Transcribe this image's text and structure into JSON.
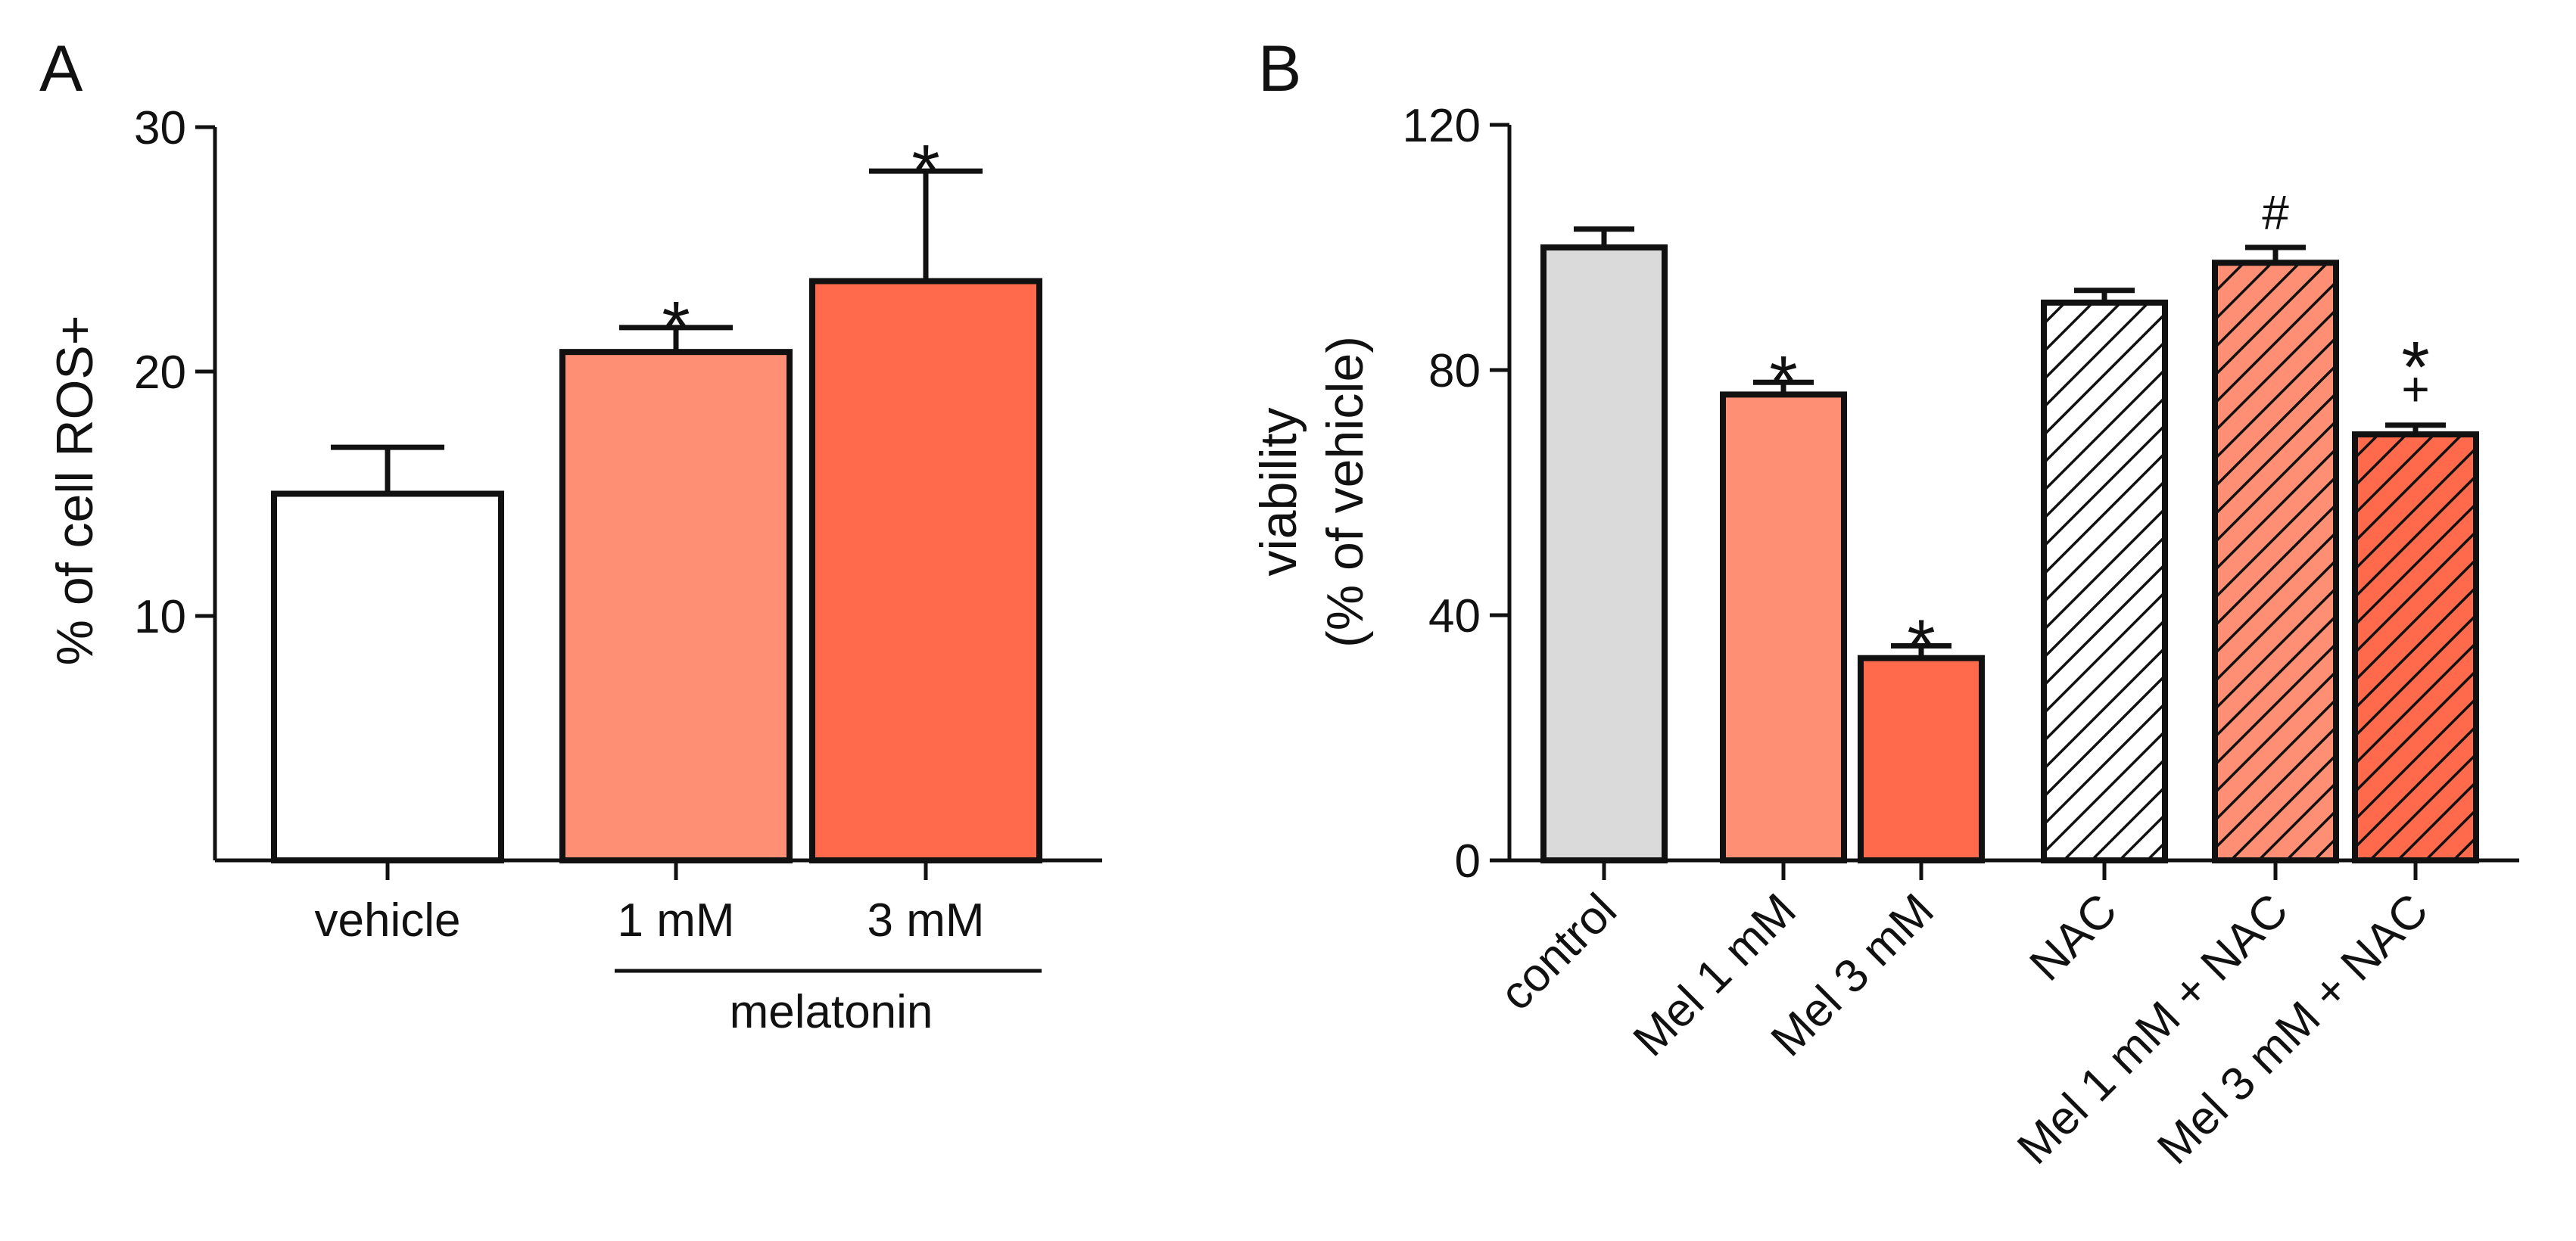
{
  "colors": {
    "white": "#ffffff",
    "grey": "#dadada",
    "salmon": "#ff8f74",
    "coral": "#ff6a4c",
    "axis": "#111111"
  },
  "chart_data": [
    {
      "panel": "A",
      "type": "bar",
      "ylabel": "% of cell ROS+",
      "ylim": [
        0,
        30
      ],
      "yticks": [
        10,
        20,
        30
      ],
      "categories": [
        "vehicle",
        "1 mM",
        "3 mM"
      ],
      "values": [
        15.0,
        20.8,
        23.7
      ],
      "errors": [
        1.9,
        1.0,
        4.5
      ],
      "fills": [
        "white",
        "salmon",
        "coral"
      ],
      "annotations": [
        "",
        "*",
        "*"
      ],
      "group_label": "melatonin",
      "group_categories": [
        "1 mM",
        "3 mM"
      ]
    },
    {
      "panel": "B",
      "type": "bar",
      "ylabel": "viability",
      "ylabel2": "(% of vehicle)",
      "ylim": [
        0,
        120
      ],
      "yticks": [
        0,
        40,
        80,
        120
      ],
      "categories": [
        "control",
        "Mel 1 mM",
        "Mel 3 mM",
        "NAC",
        "Mel 1 mM + NAC",
        "Mel 3 mM + NAC"
      ],
      "values": [
        100,
        76,
        33,
        91,
        97.5,
        69.5
      ],
      "errors": [
        3,
        2,
        2,
        2,
        2.5,
        1.5
      ],
      "fills": [
        "grey",
        "salmon",
        "coral",
        "white",
        "salmon",
        "coral"
      ],
      "hatched": [
        false,
        false,
        false,
        true,
        true,
        true
      ],
      "annotations": [
        "",
        "*",
        "*",
        "",
        "#",
        "*"
      ],
      "annotations2": [
        "",
        "",
        "",
        "",
        "",
        "+"
      ]
    }
  ]
}
